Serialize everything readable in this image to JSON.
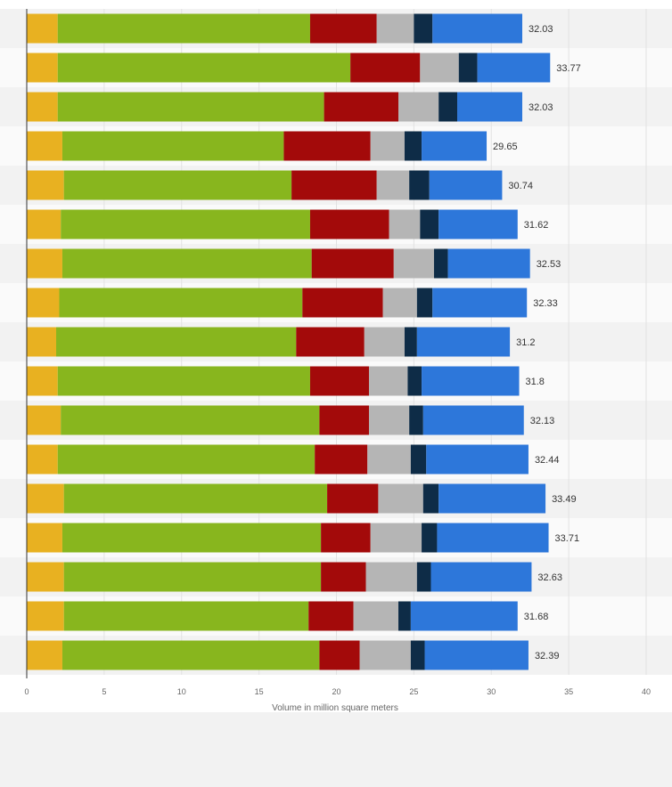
{
  "chart_data": {
    "type": "bar",
    "orientation": "horizontal",
    "stacked": true,
    "xlabel": "Volume in million square meters",
    "xlim": [
      0,
      40
    ],
    "xticks": [
      0,
      5,
      10,
      15,
      20,
      25,
      30,
      35,
      40
    ],
    "grid": true,
    "legend": "none",
    "colors": [
      "#e8b121",
      "#88b61e",
      "#a30a0a",
      "#b5b5b5",
      "#0e2c47",
      "#2d77da"
    ],
    "categories": [
      "",
      "",
      "",
      "",
      "",
      "",
      "",
      "",
      "",
      "",
      "",
      "",
      "",
      "",
      "",
      "",
      ""
    ],
    "series": [
      {
        "values": [
          2.0,
          2.0,
          2.0,
          2.3,
          2.4,
          2.2,
          2.3,
          2.1,
          1.9,
          2.0,
          2.2,
          2.0,
          2.4,
          2.3,
          2.4,
          2.4,
          2.3
        ]
      },
      {
        "values": [
          16.3,
          18.9,
          17.2,
          14.3,
          14.7,
          16.1,
          16.1,
          15.7,
          15.5,
          16.3,
          16.7,
          16.6,
          17.0,
          16.7,
          16.6,
          15.8,
          16.6
        ]
      },
      {
        "values": [
          4.3,
          4.5,
          4.8,
          5.6,
          5.5,
          5.1,
          5.3,
          5.2,
          4.4,
          3.8,
          3.2,
          3.4,
          3.3,
          3.2,
          2.9,
          2.9,
          2.6
        ]
      },
      {
        "values": [
          2.4,
          2.5,
          2.6,
          2.2,
          2.1,
          2.0,
          2.6,
          2.2,
          2.6,
          2.5,
          2.6,
          2.8,
          2.9,
          3.3,
          3.3,
          2.9,
          3.3
        ]
      },
      {
        "values": [
          1.2,
          1.2,
          1.2,
          1.1,
          1.3,
          1.2,
          0.9,
          1.0,
          0.8,
          0.9,
          0.9,
          1.0,
          1.0,
          1.0,
          0.9,
          0.8,
          0.9
        ]
      },
      {
        "values": [
          5.8,
          4.7,
          4.2,
          4.2,
          4.7,
          5.1,
          5.3,
          6.1,
          6.0,
          6.3,
          6.5,
          6.6,
          6.9,
          7.2,
          6.5,
          6.9,
          6.7
        ]
      }
    ],
    "totals": [
      "32.03",
      "33.77",
      "32.03",
      "29.65",
      "30.74",
      "31.62",
      "32.53",
      "32.33",
      "31.2",
      "31.8",
      "32.13",
      "32.44",
      "33.49",
      "33.71",
      "32.63",
      "31.68",
      "32.39"
    ]
  }
}
